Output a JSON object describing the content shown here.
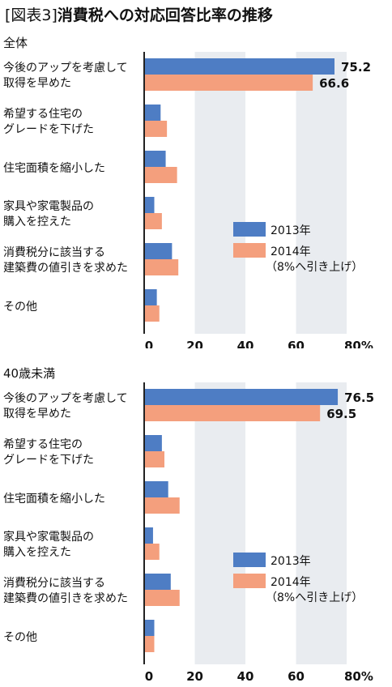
{
  "header": {
    "tag": "[図表3]",
    "title": "消費税への対応回答比率の推移"
  },
  "colors": {
    "s2013": "#4e7dc4",
    "s2014": "#f49f7d",
    "band": "#e9ecf0",
    "axis": "#222222"
  },
  "chart_data": [
    {
      "type": "bar",
      "orientation": "horizontal",
      "title": "全体",
      "categories": [
        [
          "今後のアップを考慮して",
          "取得を早めた"
        ],
        [
          "希望する住宅の",
          "グレードを下げた"
        ],
        [
          "住宅面積を縮小した"
        ],
        [
          "家具や家電製品の",
          "購入を控えた"
        ],
        [
          "消費税分に該当する",
          "建築費の値引きを求めた"
        ],
        [
          "その他"
        ]
      ],
      "series": [
        {
          "name": "2013年",
          "values": [
            75.2,
            6.5,
            8.5,
            4.0,
            11.0,
            5.0
          ],
          "labels": [
            "75.2",
            "",
            "",
            "",
            "",
            ""
          ]
        },
        {
          "name": "2014年",
          "values": [
            66.6,
            9.0,
            13.0,
            7.0,
            13.5,
            6.0
          ],
          "labels": [
            "66.6",
            "",
            "",
            "",
            "",
            ""
          ]
        }
      ],
      "legend": {
        "entries": [
          [
            "2013年"
          ],
          [
            "2014年",
            "（8%へ引き上げ）"
          ]
        ],
        "placement": "lower-center"
      },
      "xlim": [
        0,
        80
      ],
      "xticks": [
        "0",
        "20",
        "40",
        "60",
        "80%"
      ],
      "grid": "alternating bands"
    },
    {
      "type": "bar",
      "orientation": "horizontal",
      "title": "40歳未満",
      "categories": [
        [
          "今後のアップを考慮して",
          "取得を早めた"
        ],
        [
          "希望する住宅の",
          "グレードを下げた"
        ],
        [
          "住宅面積を縮小した"
        ],
        [
          "家具や家電製品の",
          "購入を控えた"
        ],
        [
          "消費税分に該当する",
          "建築費の値引きを求めた"
        ],
        [
          "その他"
        ]
      ],
      "series": [
        {
          "name": "2013年",
          "values": [
            76.5,
            7.0,
            9.5,
            3.5,
            10.5,
            4.0
          ],
          "labels": [
            "76.5",
            "",
            "",
            "",
            "",
            ""
          ]
        },
        {
          "name": "2014年",
          "values": [
            69.5,
            8.0,
            14.0,
            6.0,
            14.0,
            4.0
          ],
          "labels": [
            "69.5",
            "",
            "",
            "",
            "",
            ""
          ]
        }
      ],
      "legend": {
        "entries": [
          [
            "2013年"
          ],
          [
            "2014年",
            "（8%へ引き上げ）"
          ]
        ],
        "placement": "lower-center"
      },
      "xlim": [
        0,
        80
      ],
      "xticks": [
        "0",
        "20",
        "40",
        "60",
        "80%"
      ],
      "grid": "alternating bands"
    }
  ]
}
